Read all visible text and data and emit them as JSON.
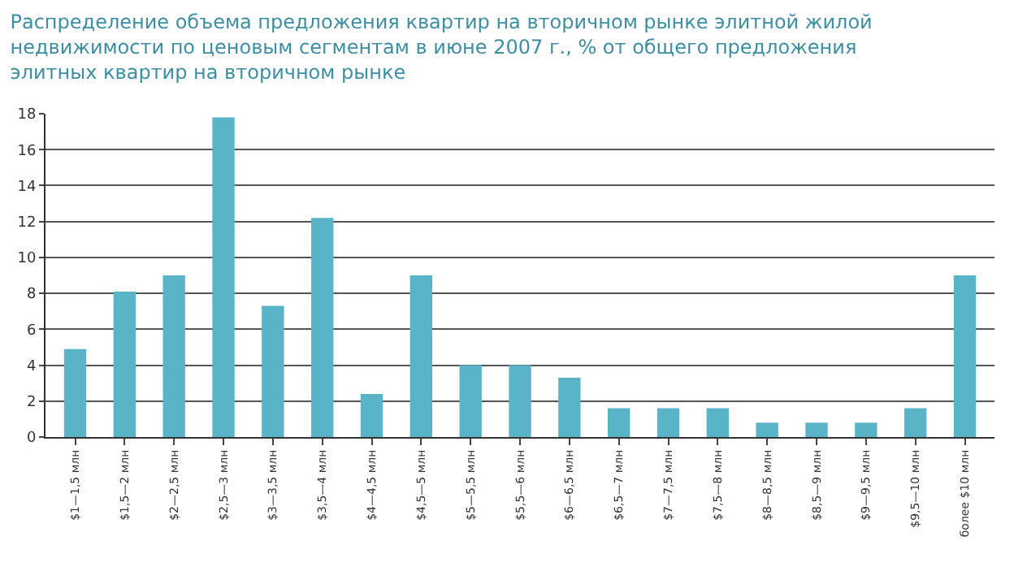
{
  "chart_data": {
    "type": "bar",
    "title": "Распределение объема предложения квартир на вторичном рынке элитной жилой недвижимости по ценовым сегментам в июне 2007 г., % от общего предложения элитных квартир на вторичном рынке",
    "categories": [
      "$1—1,5 млн",
      "$1,5—2 млн",
      "$2—2,5 млн",
      "$2,5—3 млн",
      "$3—3,5 млн",
      "$3,5—4 млн",
      "$4—4,5 млн",
      "$4,5—5 млн",
      "$5—5,5 млн",
      "$5,5—6 млн",
      "$6—6,5 млн",
      "$6,5—7 млн",
      "$7—7,5 млн",
      "$7,5—8 млн",
      "$8—8,5 млн",
      "$8,5—9 млн",
      "$9—9,5 млн",
      "$9,5—10 млн",
      "более $10 млн"
    ],
    "values": [
      4.9,
      8.1,
      9.0,
      17.8,
      7.3,
      12.2,
      2.4,
      9.0,
      4.0,
      4.0,
      3.3,
      1.6,
      1.6,
      1.6,
      0.8,
      0.8,
      0.8,
      1.6,
      9.0
    ],
    "color": "#5ab4c8",
    "ylim": [
      0,
      18
    ],
    "yticks": [
      0,
      2,
      4,
      6,
      8,
      10,
      12,
      14,
      16,
      18
    ],
    "grid": "y"
  }
}
